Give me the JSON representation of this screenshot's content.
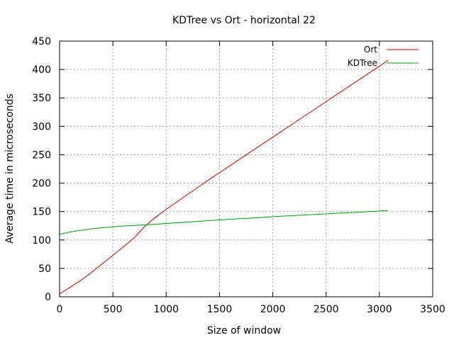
{
  "chart_data": {
    "type": "line",
    "title": "KDTree vs Ort - horizontal 22",
    "xlabel": "Size of window",
    "ylabel": "Average time in microseconds",
    "xlim": [
      0,
      3500
    ],
    "ylim": [
      0,
      450
    ],
    "xticks": [
      0,
      500,
      1000,
      1500,
      2000,
      2500,
      3000,
      3500
    ],
    "yticks": [
      0,
      50,
      100,
      150,
      200,
      250,
      300,
      350,
      400,
      450
    ],
    "grid": true,
    "legend_position": "top-right",
    "series": [
      {
        "name": "Ort",
        "color": "#cc0000",
        "x": [
          0,
          100,
          200,
          300,
          400,
          500,
          600,
          700,
          750,
          800,
          900,
          1000,
          1200,
          1400,
          1600,
          1800,
          2000,
          2200,
          2400,
          2600,
          2800,
          3000,
          3080
        ],
        "y": [
          5,
          17,
          29,
          43,
          58,
          73,
          88,
          104,
          114,
          124,
          140,
          154,
          180,
          206,
          231,
          256,
          281,
          306,
          331,
          356,
          381,
          406,
          416
        ]
      },
      {
        "name": "KDTree",
        "color": "#00a000",
        "x": [
          0,
          100,
          200,
          300,
          400,
          500,
          600,
          700,
          800,
          1000,
          1200,
          1400,
          1600,
          1800,
          2000,
          2200,
          2400,
          2600,
          2800,
          3000,
          3080
        ],
        "y": [
          110,
          114,
          117,
          119.5,
          121.5,
          123,
          124.5,
          125.5,
          126.5,
          129,
          131.5,
          134,
          136.5,
          138.5,
          141,
          143,
          145,
          147,
          149,
          151,
          152
        ]
      }
    ]
  }
}
